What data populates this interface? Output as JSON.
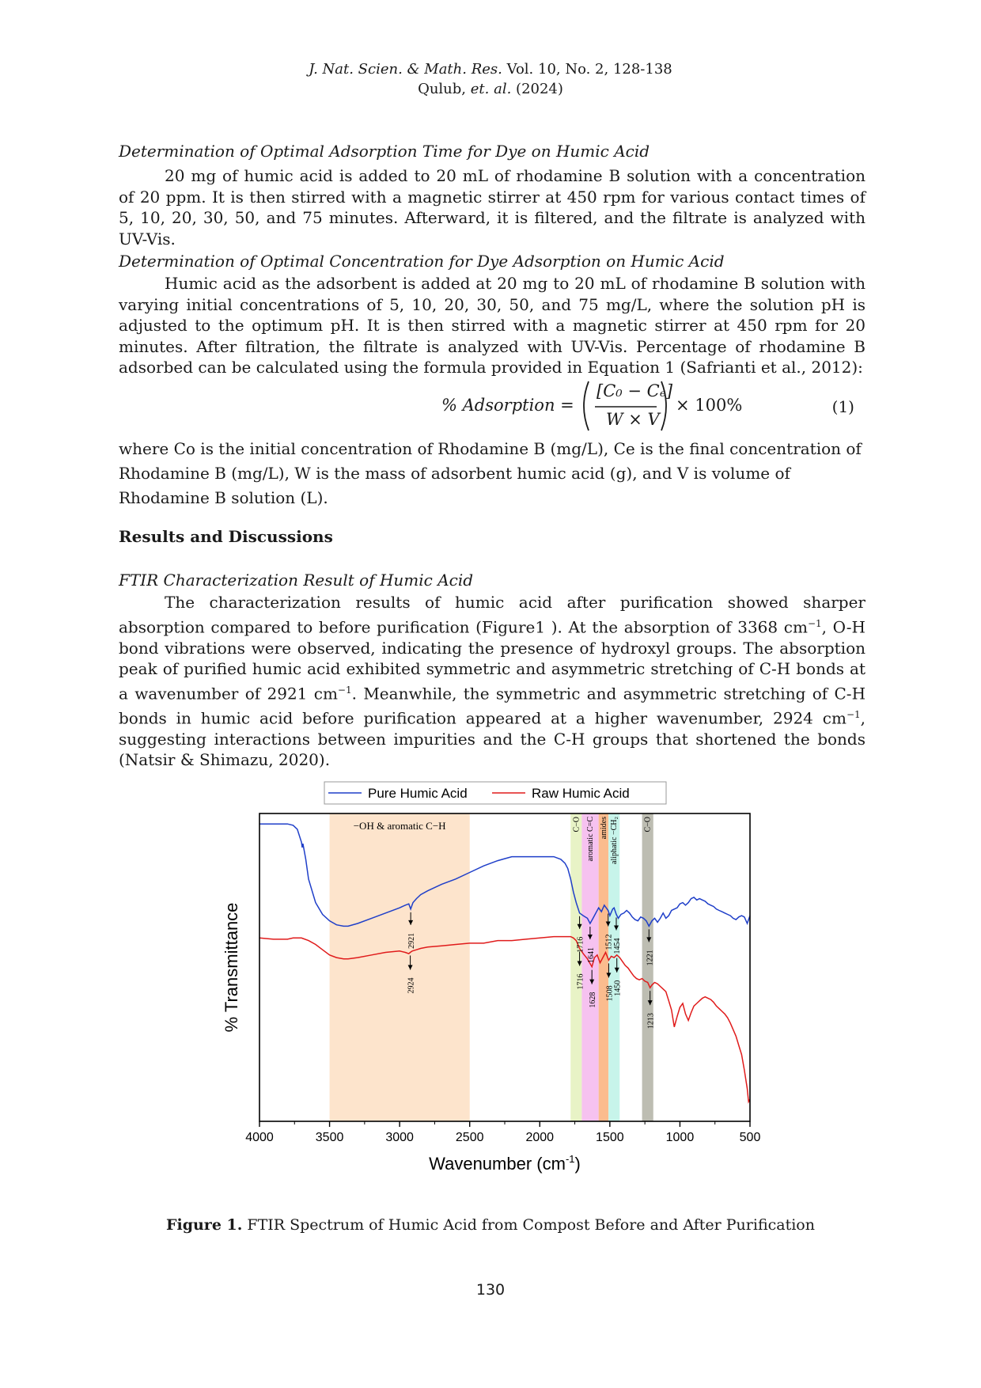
{
  "header": {
    "journal": "J. Nat. Scien. & Math. Res.",
    "volume": "Vol. 10, No. 2, 128-138",
    "authors": "Qulub,",
    "etal": "et. al.",
    "year": "(2024)"
  },
  "section1": {
    "title": "Determination of Optimal Adsorption Time for Dye on Humic Acid",
    "text": "20 mg of humic acid is added to 20 mL of rhodamine B solution with a concentration of 20 ppm. It is then stirred with a magnetic stirrer at 450 rpm for various contact times of 5, 10, 20, 30, 50, and 75 minutes. Afterward, it is filtered, and the filtrate is analyzed with UV-Vis."
  },
  "section2": {
    "title": "Determination of Optimal Concentration for Dye Adsorption on Humic Acid",
    "text": "Humic acid as the adsorbent is added at 20 mg to 20 mL of rhodamine B solution with varying initial concentrations of 5, 10, 20, 30, 50, and 75 mg/L, where the solution pH is adjusted to the optimum pH. It is then stirred with a magnetic stirrer at 450 rpm for 20 minutes. After filtration, the filtrate is analyzed with UV-Vis. Percentage of rhodamine B adsorbed can be calculated using the formula provided in Equation 1 (Safrianti et al., 2012):"
  },
  "equation": {
    "lhs": "% Adsorption =",
    "numerator": "[C₀ − Cₑ]",
    "denominator": "W × V",
    "factor": "× 100%",
    "number": "(1)"
  },
  "where_text": "where Co is the initial concentration of Rhodamine B (mg/L), Ce is the final concentration of Rhodamine B (mg/L), W is the mass of adsorbent humic acid (g), and V is volume of Rhodamine B solution (L).",
  "results_title": "Results and Discussions",
  "section3": {
    "title": "FTIR Characterization Result of Humic Acid",
    "p1": "The characterization results of humic acid after purification showed sharper absorption compared to before purification (Figure1 ). At the absorption of 3368 cm",
    "p2": ", O-H bond vibrations were observed, indicating the presence of hydroxyl groups. The absorption peak of purified humic acid exhibited symmetric and asymmetric stretching of C-H bonds at a wavenumber of 2921 cm",
    "p3": ". Meanwhile, the symmetric and asymmetric stretching of C-H bonds in humic acid before purification appeared at a higher wavenumber, 2924 cm",
    "p4": ", suggesting interactions between impurities and the C-H groups that shortened the bonds (Natsir & Shimazu, 2020).",
    "sup": "−1"
  },
  "chart_data": {
    "type": "line",
    "xlabel": "Wavenumber (cm",
    "xlabel_sup": "-1",
    "xlabel_end": ")",
    "ylabel": "% Transmittance",
    "xlim": [
      4000,
      500
    ],
    "xticks": [
      "4000",
      "3500",
      "3000",
      "2500",
      "2000",
      "1500",
      "1000",
      "500"
    ],
    "legend_position": "top",
    "series": [
      {
        "name": "Pure Humic Acid",
        "color": "#1f3fc9",
        "x": [
          4000,
          3900,
          3800,
          3760,
          3730,
          3700,
          3695,
          3690,
          3670,
          3650,
          3600,
          3550,
          3500,
          3450,
          3400,
          3368,
          3300,
          3200,
          3100,
          3000,
          2960,
          2935,
          2921,
          2905,
          2880,
          2850,
          2800,
          2700,
          2600,
          2500,
          2400,
          2300,
          2200,
          2100,
          2000,
          1900,
          1850,
          1820,
          1800,
          1780,
          1760,
          1740,
          1716,
          1690,
          1660,
          1641,
          1620,
          1600,
          1580,
          1560,
          1540,
          1512,
          1500,
          1480,
          1470,
          1454,
          1440,
          1420,
          1400,
          1380,
          1360,
          1340,
          1320,
          1300,
          1280,
          1260,
          1240,
          1221,
          1200,
          1180,
          1160,
          1140,
          1120,
          1100,
          1080,
          1060,
          1040,
          1020,
          1000,
          980,
          960,
          940,
          920,
          900,
          880,
          860,
          840,
          820,
          800,
          780,
          760,
          740,
          720,
          700,
          680,
          660,
          640,
          620,
          600,
          580,
          560,
          540,
          520,
          510,
          500
        ],
        "y": [
          8,
          8,
          8,
          9,
          12,
          22,
          26,
          23,
          35,
          50,
          68,
          77,
          82,
          85,
          86,
          86,
          84,
          80,
          76,
          72,
          70,
          69,
          73,
          68,
          65,
          62,
          59,
          54,
          50,
          45,
          40,
          36,
          33,
          33,
          33,
          33,
          35,
          38,
          42,
          50,
          60,
          68,
          76,
          78,
          80,
          84,
          80,
          76,
          72,
          75,
          70,
          74,
          78,
          73,
          72,
          77,
          80,
          77,
          76,
          74,
          76,
          79,
          81,
          82,
          79,
          80,
          82,
          86,
          82,
          80,
          83,
          80,
          76,
          80,
          78,
          74,
          73,
          72,
          69,
          68,
          70,
          68,
          65,
          64,
          66,
          65,
          66,
          67,
          69,
          70,
          71,
          73,
          74,
          75,
          76,
          77,
          78,
          80,
          81,
          79,
          78,
          79,
          84,
          81,
          78
        ]
      },
      {
        "name": "Raw Humic Acid",
        "color": "#e01b1b",
        "x": [
          4000,
          3900,
          3800,
          3760,
          3700,
          3650,
          3600,
          3550,
          3500,
          3450,
          3400,
          3368,
          3300,
          3200,
          3100,
          3000,
          2960,
          2935,
          2924,
          2910,
          2880,
          2850,
          2800,
          2700,
          2600,
          2500,
          2400,
          2300,
          2200,
          2100,
          2000,
          1900,
          1850,
          1800,
          1780,
          1760,
          1740,
          1716,
          1690,
          1660,
          1628,
          1610,
          1590,
          1570,
          1550,
          1530,
          1508,
          1490,
          1470,
          1450,
          1430,
          1410,
          1390,
          1370,
          1350,
          1330,
          1310,
          1290,
          1270,
          1250,
          1230,
          1213,
          1200,
          1180,
          1160,
          1140,
          1120,
          1100,
          1080,
          1060,
          1040,
          1020,
          1000,
          980,
          960,
          940,
          920,
          900,
          880,
          860,
          840,
          820,
          800,
          780,
          760,
          740,
          720,
          700,
          680,
          660,
          640,
          620,
          600,
          580,
          560,
          540,
          520,
          510,
          505,
          500
        ],
        "y": [
          95,
          96,
          96,
          95,
          95,
          97,
          100,
          104,
          108,
          110,
          111,
          111,
          110,
          108,
          106,
          105,
          106,
          107,
          106,
          105,
          104,
          103,
          102,
          101,
          100,
          99,
          99,
          97,
          97,
          96,
          95,
          94,
          94,
          94,
          94,
          95,
          97,
          103,
          107,
          111,
          117,
          110,
          108,
          114,
          110,
          106,
          112,
          109,
          110,
          108,
          110,
          113,
          116,
          118,
          121,
          124,
          126,
          127,
          126,
          128,
          129,
          133,
          131,
          129,
          130,
          132,
          134,
          136,
          143,
          150,
          163,
          155,
          148,
          145,
          153,
          158,
          152,
          147,
          145,
          143,
          141,
          140,
          141,
          142,
          144,
          147,
          149,
          151,
          153,
          156,
          160,
          165,
          170,
          177,
          184,
          196,
          210,
          220,
          219,
          220
        ]
      }
    ],
    "bands": [
      {
        "label": "−OH & aromatic C−H",
        "from": 3500,
        "to": 2500,
        "color": "#fde4cc"
      },
      {
        "label": "C−O",
        "from": 1780,
        "to": 1700,
        "color": "#e8f3c6"
      },
      {
        "label": "aromatic C=C",
        "from": 1700,
        "to": 1580,
        "color": "#f6c2f0"
      },
      {
        "label": "amides",
        "from": 1580,
        "to": 1510,
        "color": "#fbbc8e"
      },
      {
        "label": "aliphatic −CH₂",
        "from": 1510,
        "to": 1430,
        "color": "#c7f4ea"
      },
      {
        "label": "C−O",
        "from": 1270,
        "to": 1190,
        "color": "#bdbdb2"
      }
    ],
    "annotations_pure": [
      {
        "label": "2921",
        "x": 2921
      },
      {
        "label": "1716",
        "x": 1716
      },
      {
        "label": "1641",
        "x": 1641
      },
      {
        "label": "1512",
        "x": 1512
      },
      {
        "label": "1454",
        "x": 1454
      },
      {
        "label": "1221",
        "x": 1221
      }
    ],
    "annotations_raw": [
      {
        "label": "2924",
        "x": 2924
      },
      {
        "label": "1716",
        "x": 1716
      },
      {
        "label": "1628",
        "x": 1628
      },
      {
        "label": "1508",
        "x": 1508
      },
      {
        "label": "1450",
        "x": 1450
      },
      {
        "label": "1213",
        "x": 1213
      }
    ]
  },
  "caption": {
    "label": "Figure 1.",
    "text": " FTIR Spectrum of Humic Acid from Compost Before and After Purification"
  },
  "page_number": "130"
}
